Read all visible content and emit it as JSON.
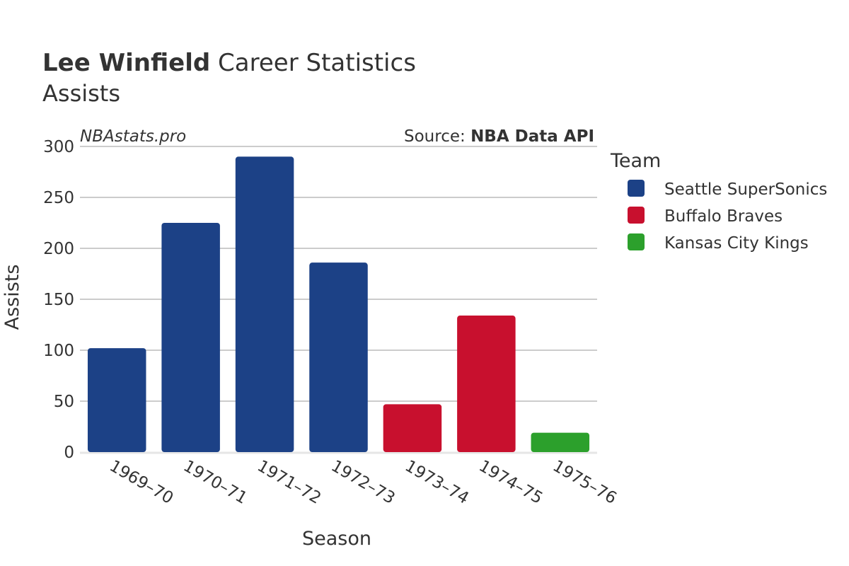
{
  "header": {
    "player_name": "Lee Winfield",
    "title_rest": " Career Statistics",
    "subtitle": "Assists",
    "watermark": "NBAstats.pro",
    "source_prefix": "Source: ",
    "source_name": "NBA Data API"
  },
  "legend": {
    "title": "Team"
  },
  "chart_data": {
    "type": "bar",
    "title": "Lee Winfield Career Statistics",
    "subtitle": "Assists",
    "xlabel": "Season",
    "ylabel": "Assists",
    "ylim": [
      0,
      300
    ],
    "yticks": [
      0,
      50,
      100,
      150,
      200,
      250,
      300
    ],
    "grid": true,
    "legend_position": "right",
    "legend_title": "Team",
    "categories": [
      "1969–70",
      "1970–71",
      "1971–72",
      "1972–73",
      "1973–74",
      "1974–75",
      "1975–76"
    ],
    "series": [
      {
        "name": "Seattle SuperSonics",
        "color": "#1c4186",
        "values": [
          102,
          225,
          290,
          186,
          null,
          null,
          null
        ]
      },
      {
        "name": "Buffalo Braves",
        "color": "#c8102e",
        "values": [
          null,
          null,
          null,
          null,
          47,
          134,
          null
        ]
      },
      {
        "name": "Kansas City Kings",
        "color": "#2ca02c",
        "values": [
          null,
          null,
          null,
          null,
          null,
          null,
          19
        ]
      }
    ]
  }
}
